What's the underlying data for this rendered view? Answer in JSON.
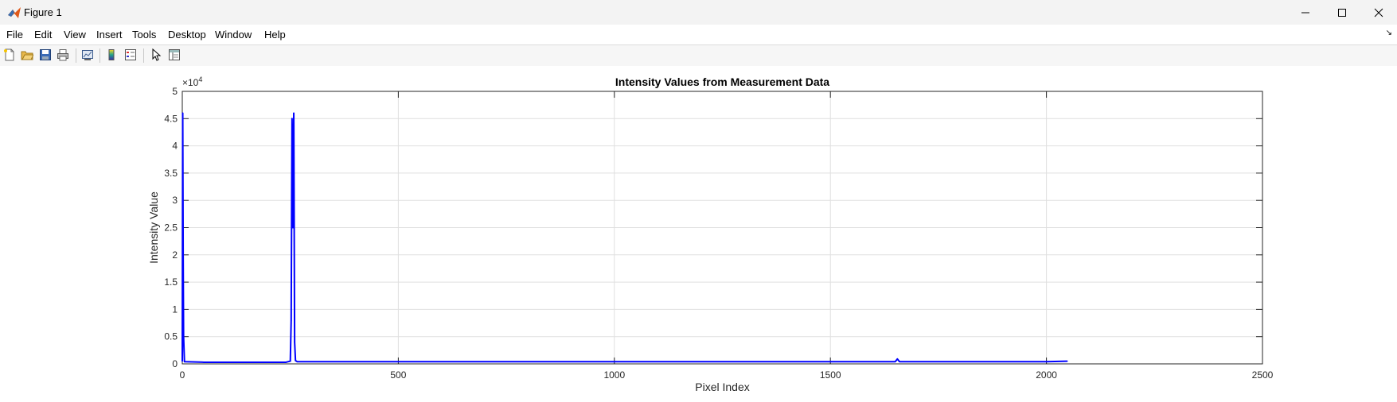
{
  "window": {
    "title": "Figure 1",
    "minimize_icon": "minimize-icon",
    "maximize_icon": "maximize-icon",
    "close_icon": "close-icon"
  },
  "menu": {
    "items": [
      "File",
      "Edit",
      "View",
      "Insert",
      "Tools",
      "Desktop",
      "Window",
      "Help"
    ]
  },
  "toolbar": {
    "buttons": [
      "new-figure-icon",
      "open-file-icon",
      "save-icon",
      "print-icon",
      "link-plot-icon",
      "insert-colorbar-icon",
      "insert-legend-icon",
      "edit-plot-icon",
      "property-inspector-icon"
    ]
  },
  "chart_data": {
    "type": "line",
    "title": "Intensity Values from Measurement Data",
    "xlabel": "Pixel Index",
    "ylabel": "Intensity Value",
    "xlim": [
      0,
      2500
    ],
    "ylim": [
      0,
      5
    ],
    "y_exponent_label": "×10",
    "y_exponent_power": "4",
    "x_ticks": [
      "0",
      "500",
      "1000",
      "1500",
      "2000",
      "2500"
    ],
    "y_ticks": [
      "0",
      "0.5",
      "1",
      "1.5",
      "2",
      "2.5",
      "3",
      "3.5",
      "4",
      "4.5",
      "5"
    ],
    "grid": true,
    "line_color": "#0000ff",
    "series": [
      {
        "x": [
          0,
          1,
          2,
          3,
          5,
          50,
          100,
          150,
          200,
          240,
          250,
          252,
          254,
          256,
          258,
          260,
          262,
          264,
          266,
          270,
          300,
          500,
          1000,
          1500,
          1650,
          1655,
          1660,
          1700,
          2000,
          2048
        ],
        "y": [
          0.05,
          4.6,
          2.0,
          0.5,
          0.04,
          0.03,
          0.03,
          0.03,
          0.03,
          0.03,
          0.05,
          0.8,
          4.5,
          2.5,
          4.6,
          0.4,
          0.06,
          0.05,
          0.04,
          0.04,
          0.04,
          0.04,
          0.04,
          0.04,
          0.04,
          0.09,
          0.04,
          0.04,
          0.04,
          0.05
        ]
      }
    ]
  }
}
